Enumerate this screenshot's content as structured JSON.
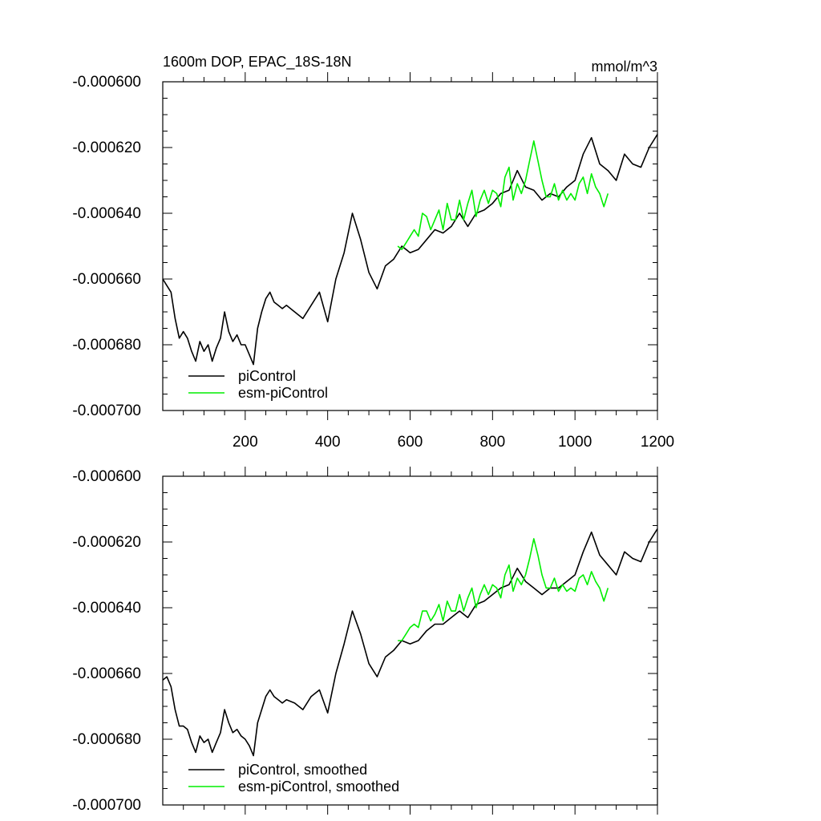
{
  "chart_data": [
    {
      "type": "line",
      "title": "1600m DOP, EPAC_18S-18N",
      "units_label": "mmol/m^3",
      "xlabel": "",
      "ylabel": "",
      "xlim": [
        0,
        1200
      ],
      "ylim": [
        -0.0007,
        -0.0006
      ],
      "xticks": [
        200,
        400,
        600,
        800,
        1000,
        1200
      ],
      "xtick_labels": [
        "200",
        "400",
        "600",
        "800",
        "1000",
        "1200"
      ],
      "yticks": [
        -0.0006,
        -0.00062,
        -0.00064,
        -0.00066,
        -0.00068,
        -0.0007
      ],
      "ytick_labels": [
        "-0.000600",
        "-0.000620",
        "-0.000640",
        "-0.000660",
        "-0.000680",
        "-0.000700"
      ],
      "legend_position": "bottom-left",
      "series": [
        {
          "name": "piControl",
          "color": "#000000",
          "x": [
            0,
            10,
            20,
            30,
            40,
            50,
            60,
            70,
            80,
            90,
            100,
            110,
            120,
            130,
            140,
            150,
            160,
            170,
            180,
            190,
            200,
            210,
            220,
            230,
            240,
            250,
            260,
            270,
            280,
            290,
            300,
            320,
            340,
            360,
            380,
            400,
            420,
            440,
            460,
            480,
            500,
            520,
            540,
            560,
            580,
            600,
            620,
            640,
            660,
            680,
            700,
            720,
            740,
            760,
            780,
            800,
            820,
            840,
            860,
            880,
            900,
            920,
            940,
            960,
            980,
            1000,
            1020,
            1040,
            1060,
            1080,
            1100,
            1120,
            1140,
            1160,
            1180,
            1200
          ],
          "y": [
            -0.00066,
            -0.000662,
            -0.000664,
            -0.000672,
            -0.000678,
            -0.000676,
            -0.000678,
            -0.000682,
            -0.000685,
            -0.000679,
            -0.000682,
            -0.00068,
            -0.000685,
            -0.000681,
            -0.000678,
            -0.00067,
            -0.000676,
            -0.000679,
            -0.000677,
            -0.00068,
            -0.00068,
            -0.000683,
            -0.000686,
            -0.000675,
            -0.00067,
            -0.000666,
            -0.000664,
            -0.000667,
            -0.000668,
            -0.000669,
            -0.000668,
            -0.00067,
            -0.000672,
            -0.000668,
            -0.000664,
            -0.000673,
            -0.00066,
            -0.000652,
            -0.00064,
            -0.000648,
            -0.000658,
            -0.000663,
            -0.000656,
            -0.000654,
            -0.00065,
            -0.000652,
            -0.000651,
            -0.000648,
            -0.000645,
            -0.000646,
            -0.000644,
            -0.00064,
            -0.000644,
            -0.00064,
            -0.000639,
            -0.000637,
            -0.000634,
            -0.000633,
            -0.000627,
            -0.000632,
            -0.000633,
            -0.000636,
            -0.000634,
            -0.000635,
            -0.000632,
            -0.00063,
            -0.000622,
            -0.000617,
            -0.000625,
            -0.000627,
            -0.00063,
            -0.000622,
            -0.000625,
            -0.000626,
            -0.00062,
            -0.000616
          ]
        },
        {
          "name": "esm-piControl",
          "color": "#00ee00",
          "x": [
            570,
            580,
            590,
            600,
            610,
            620,
            630,
            640,
            650,
            660,
            670,
            680,
            690,
            700,
            710,
            720,
            730,
            740,
            750,
            760,
            770,
            780,
            790,
            800,
            810,
            820,
            830,
            840,
            850,
            860,
            870,
            880,
            890,
            900,
            910,
            920,
            930,
            940,
            950,
            960,
            970,
            980,
            990,
            1000,
            1010,
            1020,
            1030,
            1040,
            1050,
            1060,
            1070,
            1080
          ],
          "y": [
            -0.00065,
            -0.000651,
            -0.000649,
            -0.000647,
            -0.000645,
            -0.000647,
            -0.00064,
            -0.000641,
            -0.000645,
            -0.000642,
            -0.000639,
            -0.000645,
            -0.000637,
            -0.000642,
            -0.000642,
            -0.000636,
            -0.000642,
            -0.000637,
            -0.000633,
            -0.000641,
            -0.000636,
            -0.000633,
            -0.000637,
            -0.000633,
            -0.000634,
            -0.000638,
            -0.000629,
            -0.000626,
            -0.000636,
            -0.000631,
            -0.000634,
            -0.00063,
            -0.000624,
            -0.000618,
            -0.000624,
            -0.00063,
            -0.000635,
            -0.000635,
            -0.000631,
            -0.000636,
            -0.000633,
            -0.000636,
            -0.000634,
            -0.000636,
            -0.000631,
            -0.000629,
            -0.000634,
            -0.000628,
            -0.000632,
            -0.000634,
            -0.000638,
            -0.000634
          ]
        }
      ]
    },
    {
      "type": "line",
      "title": "",
      "xlabel": "",
      "ylabel": "",
      "xlim": [
        0,
        1200
      ],
      "ylim": [
        -0.0007,
        -0.0006
      ],
      "xticks": [
        200,
        400,
        600,
        800,
        1000,
        1200
      ],
      "xtick_labels": [],
      "yticks": [
        -0.0006,
        -0.00062,
        -0.00064,
        -0.00066,
        -0.00068,
        -0.0007
      ],
      "ytick_labels": [
        "-0.000600",
        "-0.000620",
        "-0.000640",
        "-0.000660",
        "-0.000680",
        "-0.000700"
      ],
      "legend_position": "bottom-left",
      "series": [
        {
          "name": "piControl, smoothed",
          "color": "#000000",
          "x": [
            0,
            10,
            20,
            30,
            40,
            50,
            60,
            70,
            80,
            90,
            100,
            110,
            120,
            130,
            140,
            150,
            160,
            170,
            180,
            190,
            200,
            210,
            220,
            230,
            240,
            250,
            260,
            270,
            280,
            290,
            300,
            320,
            340,
            360,
            380,
            400,
            420,
            440,
            460,
            480,
            500,
            520,
            540,
            560,
            580,
            600,
            620,
            640,
            660,
            680,
            700,
            720,
            740,
            760,
            780,
            800,
            820,
            840,
            860,
            880,
            900,
            920,
            940,
            960,
            980,
            1000,
            1020,
            1040,
            1060,
            1080,
            1100,
            1120,
            1140,
            1160,
            1180,
            1200
          ],
          "y": [
            -0.000662,
            -0.000661,
            -0.000664,
            -0.000671,
            -0.000676,
            -0.000676,
            -0.000677,
            -0.000681,
            -0.000684,
            -0.000679,
            -0.000681,
            -0.00068,
            -0.000684,
            -0.000681,
            -0.000678,
            -0.000671,
            -0.000675,
            -0.000678,
            -0.000677,
            -0.000679,
            -0.00068,
            -0.000682,
            -0.000685,
            -0.000675,
            -0.000671,
            -0.000667,
            -0.000665,
            -0.000667,
            -0.000668,
            -0.000669,
            -0.000668,
            -0.000669,
            -0.000671,
            -0.000667,
            -0.000665,
            -0.000672,
            -0.00066,
            -0.000651,
            -0.000641,
            -0.000648,
            -0.000657,
            -0.000661,
            -0.000655,
            -0.000653,
            -0.00065,
            -0.000651,
            -0.00065,
            -0.000647,
            -0.000645,
            -0.000645,
            -0.000643,
            -0.000641,
            -0.000643,
            -0.000639,
            -0.000638,
            -0.000636,
            -0.000634,
            -0.000633,
            -0.000628,
            -0.000632,
            -0.000634,
            -0.000636,
            -0.000634,
            -0.000634,
            -0.000632,
            -0.00063,
            -0.000623,
            -0.000617,
            -0.000624,
            -0.000627,
            -0.00063,
            -0.000623,
            -0.000625,
            -0.000626,
            -0.00062,
            -0.000616
          ]
        },
        {
          "name": "esm-piControl, smoothed",
          "color": "#00ee00",
          "x": [
            570,
            580,
            590,
            600,
            610,
            620,
            630,
            640,
            650,
            660,
            670,
            680,
            690,
            700,
            710,
            720,
            730,
            740,
            750,
            760,
            770,
            780,
            790,
            800,
            810,
            820,
            830,
            840,
            850,
            860,
            870,
            880,
            890,
            900,
            910,
            920,
            930,
            940,
            950,
            960,
            970,
            980,
            990,
            1000,
            1010,
            1020,
            1030,
            1040,
            1050,
            1060,
            1070,
            1080
          ],
          "y": [
            -0.00065,
            -0.00065,
            -0.000648,
            -0.000646,
            -0.000645,
            -0.000646,
            -0.000641,
            -0.000641,
            -0.000644,
            -0.000642,
            -0.000639,
            -0.000644,
            -0.000638,
            -0.000641,
            -0.000641,
            -0.000636,
            -0.000641,
            -0.000637,
            -0.000634,
            -0.00064,
            -0.000636,
            -0.000633,
            -0.000636,
            -0.000633,
            -0.000634,
            -0.000637,
            -0.00063,
            -0.000627,
            -0.000635,
            -0.000631,
            -0.000633,
            -0.00063,
            -0.000625,
            -0.000619,
            -0.000624,
            -0.00063,
            -0.000634,
            -0.000634,
            -0.000631,
            -0.000635,
            -0.000633,
            -0.000635,
            -0.000634,
            -0.000635,
            -0.000631,
            -0.00063,
            -0.000633,
            -0.000629,
            -0.000632,
            -0.000634,
            -0.000638,
            -0.000634
          ]
        }
      ]
    }
  ]
}
